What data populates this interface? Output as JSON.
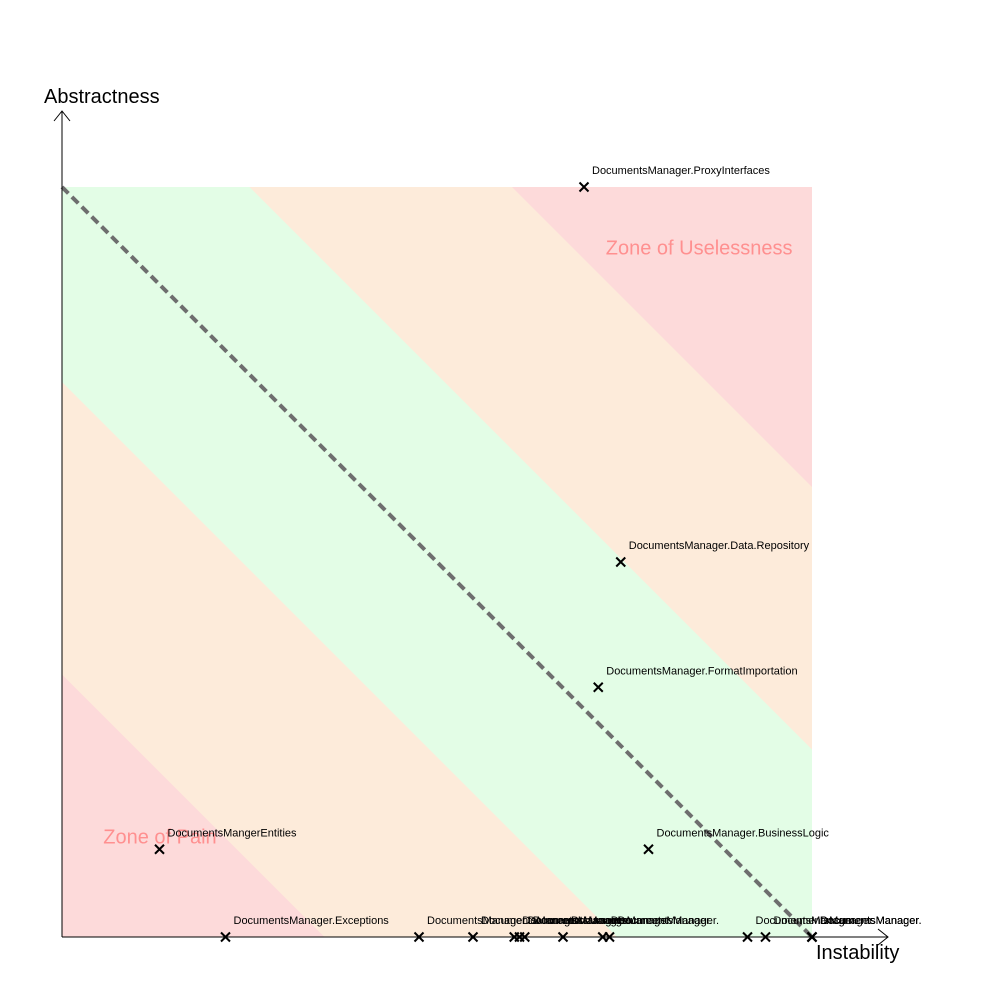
{
  "chart_data": {
    "type": "scatter",
    "xlabel": "Instability",
    "ylabel": "Abstractness",
    "xlim": [
      0,
      1
    ],
    "ylim": [
      0,
      1
    ],
    "grid": false,
    "main_sequence_line": {
      "from": [
        0,
        1
      ],
      "to": [
        1,
        0
      ],
      "style": "dashed"
    },
    "zones": [
      {
        "name": "Zone of Uselessness",
        "label_color": "#ff9090",
        "fill_color": "#fddada"
      },
      {
        "name": "Zone of Pain",
        "label_color": "#ff9090",
        "fill_color": "#fddada"
      }
    ],
    "band_colors": {
      "near": "#e3fde6",
      "mid": "#fdebda",
      "far": "#fddada"
    },
    "points": [
      {
        "label": "DocumentsManager.ProxyInterfaces",
        "x": 0.696,
        "y": 1.0
      },
      {
        "label": "DocumentsManager.Data.Repository",
        "x": 0.745,
        "y": 0.5
      },
      {
        "label": "DocumentsManager.FormatImportation",
        "x": 0.715,
        "y": 0.333
      },
      {
        "label": "DocumentsManager.BusinessLogic",
        "x": 0.782,
        "y": 0.117
      },
      {
        "label": "DocumentsMangerEntities",
        "x": 0.13,
        "y": 0.117
      },
      {
        "label": "DocumentsManager.Exceptions",
        "x": 0.218,
        "y": 0.0
      },
      {
        "label": "DocumentsManager.",
        "x": 0.476,
        "y": 0.0
      },
      {
        "label": "DocumentsManager.",
        "x": 0.548,
        "y": 0.0
      },
      {
        "label": "DocumentsManager.",
        "x": 0.603,
        "y": 0.0
      },
      {
        "label": "DocumentsManager.",
        "x": 0.61,
        "y": 0.0
      },
      {
        "label": "DocumentsManager.",
        "x": 0.617,
        "y": 0.0
      },
      {
        "label": "DocumentsManager.",
        "x": 0.668,
        "y": 0.0
      },
      {
        "label": "DocumentsManager.",
        "x": 0.721,
        "y": 0.0
      },
      {
        "label": "DocumentsManager.",
        "x": 0.73,
        "y": 0.0
      },
      {
        "label": "DocumentsManager.",
        "x": 0.914,
        "y": 0.0
      },
      {
        "label": "DocumentsManager.",
        "x": 0.938,
        "y": 0.0
      },
      {
        "label": "DocumentsManager.",
        "x": 1.0,
        "y": 0.0
      },
      {
        "label": "DocumentsManager.",
        "x": 1.0,
        "y": 0.0
      },
      {
        "label": "DocumentsManager.",
        "x": 1.0,
        "y": 0.0
      }
    ]
  }
}
